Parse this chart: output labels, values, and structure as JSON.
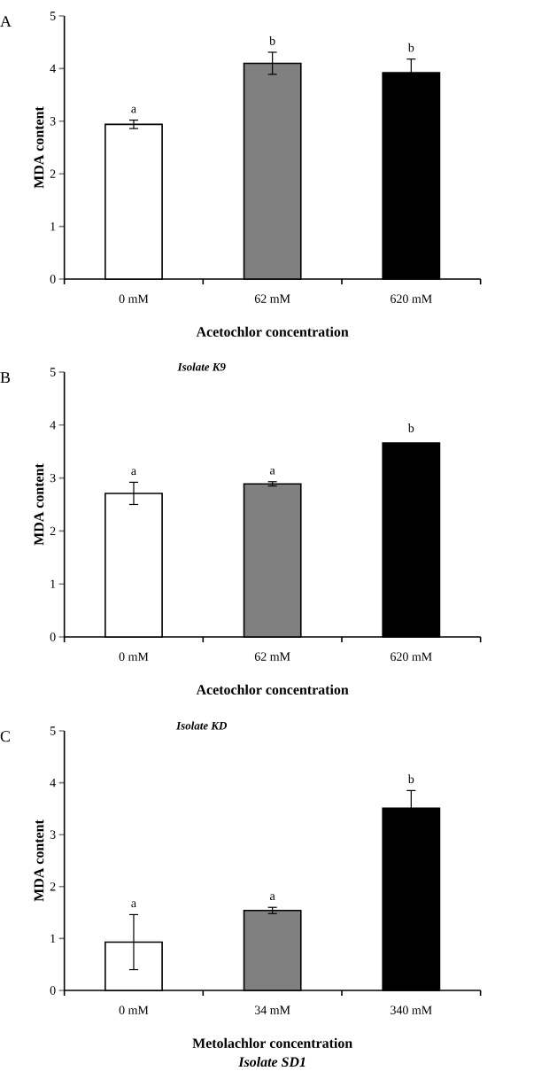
{
  "chart_data": [
    {
      "type": "bar",
      "categories": [
        "0 mM",
        "62 mM",
        "620 mM"
      ],
      "values": [
        2.94,
        4.1,
        3.92
      ],
      "errors": [
        0.08,
        0.21,
        0.26
      ],
      "colors": [
        "#ffffff",
        "#808080",
        "#000000"
      ],
      "xlabel": "Acetochlor concentration",
      "ylabel": "MDA content",
      "ylim": [
        0,
        5
      ],
      "yticks": [
        0,
        1,
        2,
        3,
        4,
        5
      ],
      "annotations": [
        "A",
        "a",
        "b",
        "b"
      ]
    },
    {
      "type": "bar",
      "title": "Isolate K9",
      "categories": [
        "0 mM",
        "62 mM",
        "620 mM"
      ],
      "values": [
        2.71,
        2.89,
        3.66
      ],
      "errors": [
        0.21,
        0.04,
        null
      ],
      "colors": [
        "#ffffff",
        "#808080",
        "#000000"
      ],
      "xlabel": "Acetochlor concentration",
      "ylabel": "MDA content",
      "ylim": [
        0,
        5
      ],
      "yticks": [
        0,
        1,
        2,
        3,
        4,
        5
      ],
      "annotations": [
        "B",
        "a",
        "a",
        "b"
      ]
    },
    {
      "type": "bar",
      "title": "Isolate KD",
      "categories": [
        "0 mM",
        "34 mM",
        "340 mM"
      ],
      "values": [
        0.93,
        1.54,
        3.51
      ],
      "errors": [
        0.53,
        0.06,
        0.34
      ],
      "colors": [
        "#ffffff",
        "#808080",
        "#000000"
      ],
      "xlabel": "Metolachlor concentration",
      "ylabel": "MDA content",
      "ylim": [
        0,
        5
      ],
      "yticks": [
        0,
        1,
        2,
        3,
        4,
        5
      ],
      "annotations": [
        "C",
        "a",
        "a",
        "b",
        "Isolate SD1"
      ]
    }
  ]
}
